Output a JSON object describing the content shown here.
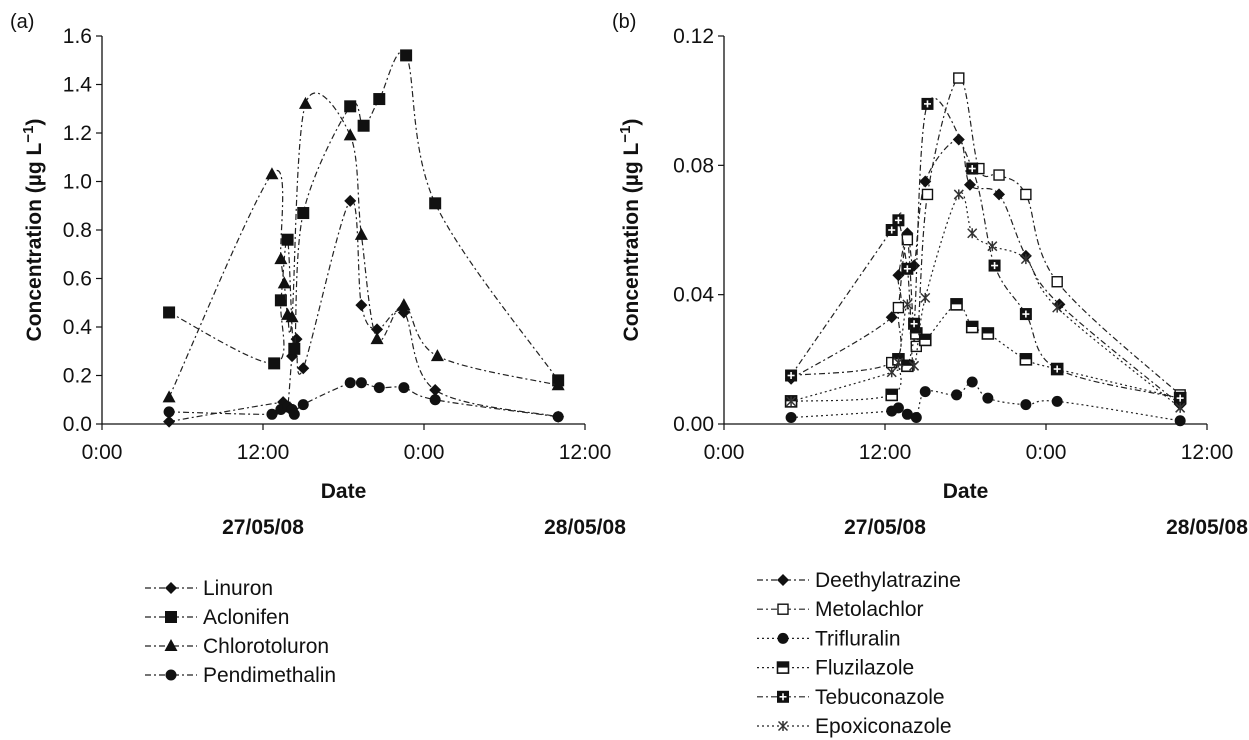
{
  "chart_data": [
    {
      "panel_label": "(a)",
      "type": "line",
      "xlabel": "Date",
      "ylabel": "Concentration (µg L",
      "ylabel_sup": "−1",
      "ylabel_close": ")",
      "x_ticks": [
        "0:00",
        "12:00",
        "0:00",
        "12:00"
      ],
      "x_ticks_hours": [
        0,
        12,
        24,
        36
      ],
      "xlim_hours": [
        0,
        36
      ],
      "date_labels": [
        "27/05/08",
        "28/05/08"
      ],
      "ylim": [
        0,
        1.6
      ],
      "y_ticks": [
        "0.0",
        "0.2",
        "0.4",
        "0.6",
        "0.8",
        "1.0",
        "1.2",
        "1.4",
        "1.6"
      ],
      "grid": false,
      "series": [
        {
          "name": "Linuron",
          "marker": "diamond",
          "dash": "dashdot",
          "x": [
            "27/05/08 05:00",
            "27/05/08 13:30",
            "27/05/08 13:50",
            "27/05/08 14:10",
            "27/05/08 14:30",
            "27/05/08 15:00",
            "27/05/08 18:30",
            "27/05/08 19:20",
            "27/05/08 20:30",
            "27/05/08 22:30",
            "28/05/08 00:50",
            "28/05/08 10:00"
          ],
          "y": [
            0.01,
            0.09,
            0.07,
            0.28,
            0.35,
            0.23,
            0.92,
            0.49,
            0.39,
            0.46,
            0.14,
            0.03
          ]
        },
        {
          "name": "Aclonifen",
          "marker": "square",
          "dash": "dashdot",
          "x": [
            "27/05/08 05:00",
            "27/05/08 12:50",
            "27/05/08 13:20",
            "27/05/08 13:50",
            "27/05/08 14:20",
            "27/05/08 15:00",
            "27/05/08 18:30",
            "27/05/08 19:30",
            "27/05/08 20:40",
            "27/05/08 22:40",
            "28/05/08 00:50",
            "28/05/08 10:00"
          ],
          "y": [
            0.46,
            0.25,
            0.51,
            0.76,
            0.31,
            0.87,
            1.31,
            1.23,
            1.34,
            1.52,
            0.91,
            0.18
          ]
        },
        {
          "name": "Chlorotoluron",
          "marker": "triangle",
          "dash": "dashdot",
          "x": [
            "27/05/08 05:00",
            "27/05/08 12:40",
            "27/05/08 13:20",
            "27/05/08 13:35",
            "27/05/08 13:50",
            "27/05/08 14:10",
            "27/05/08 15:10",
            "27/05/08 18:30",
            "27/05/08 19:20",
            "27/05/08 20:30",
            "27/05/08 22:30",
            "28/05/08 01:00",
            "28/05/08 10:00"
          ],
          "y": [
            0.11,
            1.03,
            0.68,
            0.58,
            0.45,
            0.44,
            1.32,
            1.19,
            0.78,
            0.35,
            0.49,
            0.28,
            0.16
          ]
        },
        {
          "name": "Pendimethalin",
          "marker": "circle",
          "dash": "dashdot",
          "x": [
            "27/05/08 05:00",
            "27/05/08 12:40",
            "27/05/08 13:20",
            "27/05/08 13:50",
            "27/05/08 14:10",
            "27/05/08 14:20",
            "27/05/08 15:00",
            "27/05/08 18:30",
            "27/05/08 19:20",
            "27/05/08 20:40",
            "27/05/08 22:30",
            "28/05/08 00:50",
            "28/05/08 10:00"
          ],
          "y": [
            0.05,
            0.04,
            0.06,
            0.07,
            0.06,
            0.04,
            0.08,
            0.17,
            0.17,
            0.15,
            0.15,
            0.1,
            0.03
          ]
        }
      ]
    },
    {
      "panel_label": "(b)",
      "type": "line",
      "xlabel": "Date",
      "ylabel": "Concentration (µg L",
      "ylabel_sup": "−1",
      "ylabel_close": ")",
      "x_ticks": [
        "0:00",
        "12:00",
        "0:00",
        "12:00"
      ],
      "x_ticks_hours": [
        0,
        12,
        24,
        36
      ],
      "xlim_hours": [
        0,
        36
      ],
      "date_labels": [
        "27/05/08",
        "28/05/08"
      ],
      "ylim": [
        0,
        0.12
      ],
      "y_ticks": [
        "0.00",
        "0.04",
        "0.08",
        "0.12"
      ],
      "grid": false,
      "series": [
        {
          "name": "Deethylatrazine",
          "marker": "diamond",
          "dash": "dashdot",
          "x": [
            "27/05/08 05:00",
            "27/05/08 12:30",
            "27/05/08 13:00",
            "27/05/08 13:40",
            "27/05/08 14:10",
            "27/05/08 15:00",
            "27/05/08 17:30",
            "27/05/08 18:20",
            "27/05/08 20:30",
            "27/05/08 22:30",
            "28/05/08 01:00",
            "28/05/08 10:00"
          ],
          "y": [
            0.014,
            0.033,
            0.046,
            0.059,
            0.049,
            0.075,
            0.088,
            0.074,
            0.071,
            0.052,
            0.037,
            0.006
          ]
        },
        {
          "name": "Metolachlor",
          "marker": "open-square",
          "dash": "dashdot",
          "x": [
            "27/05/08 05:00",
            "27/05/08 12:30",
            "27/05/08 13:00",
            "27/05/08 13:40",
            "27/05/08 14:20",
            "27/05/08 15:10",
            "27/05/08 17:30",
            "27/05/08 19:00",
            "27/05/08 20:30",
            "27/05/08 22:30",
            "28/05/08 00:50",
            "28/05/08 10:00"
          ],
          "y": [
            0.015,
            0.019,
            0.036,
            0.057,
            0.024,
            0.071,
            0.107,
            0.079,
            0.077,
            0.071,
            0.044,
            0.009
          ]
        },
        {
          "name": "Trifluralin",
          "marker": "circle",
          "dash": "dotted",
          "x": [
            "27/05/08 05:00",
            "27/05/08 12:30",
            "27/05/08 13:00",
            "27/05/08 13:40",
            "27/05/08 14:20",
            "27/05/08 15:00",
            "27/05/08 17:20",
            "27/05/08 18:30",
            "27/05/08 19:40",
            "27/05/08 22:30",
            "28/05/08 00:50",
            "28/05/08 10:00"
          ],
          "y": [
            0.002,
            0.004,
            0.005,
            0.003,
            0.002,
            0.01,
            0.009,
            0.013,
            0.008,
            0.006,
            0.007,
            0.001
          ]
        },
        {
          "name": "Fluzilazole",
          "marker": "half-square",
          "dash": "dotted",
          "x": [
            "27/05/08 05:00",
            "27/05/08 12:30",
            "27/05/08 13:00",
            "27/05/08 13:40",
            "27/05/08 14:20",
            "27/05/08 15:00",
            "27/05/08 17:20",
            "27/05/08 18:30",
            "27/05/08 19:40",
            "27/05/08 22:30",
            "28/05/08 00:50",
            "28/05/08 10:00"
          ],
          "y": [
            0.007,
            0.009,
            0.02,
            0.018,
            0.028,
            0.026,
            0.037,
            0.03,
            0.028,
            0.02,
            0.017,
            0.008
          ]
        },
        {
          "name": "Tebuconazole",
          "marker": "cross-square",
          "dash": "dashdot",
          "x": [
            "27/05/08 05:00",
            "27/05/08 12:30",
            "27/05/08 13:00",
            "27/05/08 13:40",
            "27/05/08 14:10",
            "27/05/08 15:10",
            "27/05/08 18:30",
            "27/05/08 20:10",
            "27/05/08 22:30",
            "28/05/08 00:50",
            "28/05/08 10:00"
          ],
          "y": [
            0.015,
            0.06,
            0.063,
            0.048,
            0.031,
            0.099,
            0.079,
            0.049,
            0.034,
            0.017,
            0.008
          ]
        },
        {
          "name": "Epoxiconazole",
          "marker": "star",
          "dash": "dotted",
          "x": [
            "27/05/08 05:00",
            "27/05/08 12:30",
            "27/05/08 13:00",
            "27/05/08 13:40",
            "27/05/08 14:10",
            "27/05/08 15:00",
            "27/05/08 17:30",
            "27/05/08 18:30",
            "27/05/08 20:00",
            "27/05/08 22:30",
            "28/05/08 00:50",
            "28/05/08 10:00"
          ],
          "y": [
            0.007,
            0.016,
            0.019,
            0.037,
            0.018,
            0.039,
            0.071,
            0.059,
            0.055,
            0.051,
            0.036,
            0.005
          ]
        }
      ]
    }
  ]
}
